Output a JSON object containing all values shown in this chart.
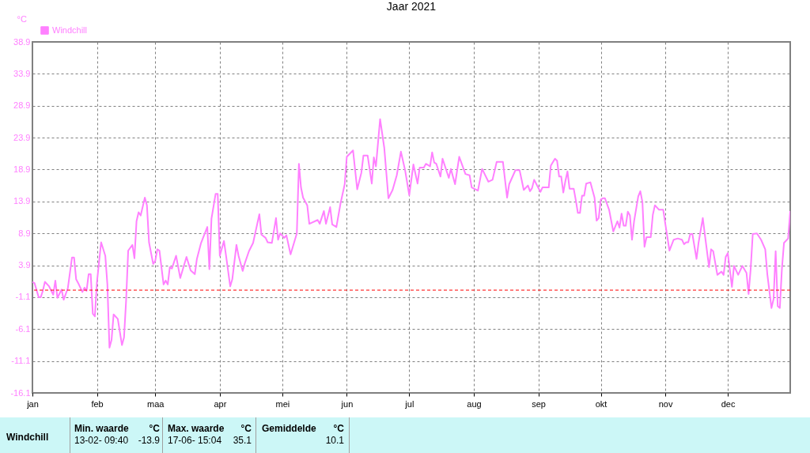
{
  "chart_data": {
    "type": "line",
    "title": "Jaar 2021",
    "ylabel": "°C",
    "x": [
      "--01-01",
      "--01-02",
      "--01-04",
      "--01-05",
      "--01-06",
      "--01-07",
      "--01-09",
      "--01-11",
      "--01-12",
      "--01-13",
      "--01-15",
      "--01-16",
      "--01-18",
      "--01-20",
      "--01-21",
      "--01-22",
      "--01-23",
      "--01-25",
      "--01-26",
      "--01-27",
      "--01-28",
      "--01-29",
      "--01-30",
      "--01-31",
      "--02-01",
      "--02-03",
      "--02-05",
      "--02-06",
      "--02-07",
      "--02-08",
      "--02-09",
      "--02-11",
      "--02-13",
      "--02-14",
      "--02-15",
      "--02-16",
      "--02-18",
      "--02-19",
      "--02-20",
      "--02-21",
      "--02-22",
      "--02-24",
      "--02-25",
      "--02-26",
      "--02-28",
      "--03-01",
      "--03-02",
      "--03-03",
      "--03-05",
      "--03-06",
      "--03-07",
      "--03-08",
      "--03-09",
      "--03-11",
      "--03-13",
      "--03-16",
      "--03-18",
      "--03-20",
      "--03-21",
      "--03-23",
      "--03-26",
      "--03-27",
      "--03-28",
      "--03-30",
      "--03-31",
      "--04-01",
      "--04-03",
      "--04-04",
      "--04-06",
      "--04-07",
      "--04-09",
      "--04-10",
      "--04-12",
      "--04-13",
      "--04-15",
      "--04-17",
      "--04-20",
      "--04-21",
      "--04-23",
      "--04-24",
      "--04-26",
      "--04-28",
      "--04-29",
      "--04-30",
      "--05-02",
      "--05-03",
      "--05-05",
      "--05-08",
      "--05-09",
      "--05-10",
      "--05-11",
      "--05-13",
      "--05-14",
      "--05-18",
      "--05-19",
      "--05-21",
      "--05-22",
      "--05-24",
      "--05-25",
      "--05-27",
      "--05-29",
      "--05-31",
      "--06-01",
      "--06-04",
      "--06-06",
      "--06-08",
      "--06-09",
      "--06-11",
      "--06-13",
      "--06-14",
      "--06-15",
      "--06-17",
      "--06-19",
      "--06-21",
      "--06-23",
      "--06-25",
      "--06-27",
      "--06-29",
      "--07-01",
      "--07-03",
      "--07-05",
      "--07-06",
      "--07-08",
      "--07-09",
      "--07-11",
      "--07-12",
      "--07-13",
      "--07-14",
      "--07-16",
      "--07-17",
      "--07-20",
      "--07-21",
      "--07-23",
      "--07-25",
      "--07-28",
      "--07-30",
      "--07-31",
      "--08-03",
      "--08-05",
      "--08-08",
      "--08-10",
      "--08-12",
      "--08-15",
      "--08-17",
      "--08-18",
      "--08-21",
      "--08-23",
      "--08-25",
      "--08-27",
      "--08-28",
      "--08-29",
      "--08-30",
      "--09-02",
      "--09-03",
      "--09-06",
      "--09-07",
      "--09-09",
      "--09-10",
      "--09-11",
      "--09-12",
      "--09-13",
      "--09-14",
      "--09-15",
      "--09-16",
      "--09-18",
      "--09-19",
      "--09-20",
      "--09-21",
      "--09-22",
      "--09-23",
      "--09-24",
      "--09-26",
      "--09-28",
      "--09-29",
      "--09-30",
      "--10-01",
      "--10-02",
      "--10-03",
      "--10-05",
      "--10-07",
      "--10-09",
      "--10-10",
      "--10-11",
      "--10-12",
      "--10-13",
      "--10-14",
      "--10-15",
      "--10-16",
      "--10-17",
      "--10-19",
      "--10-20",
      "--10-21",
      "--10-22",
      "--10-23",
      "--10-25",
      "--10-26",
      "--10-27",
      "--10-29",
      "--10-31",
      "--11-01",
      "--11-03",
      "--11-05",
      "--11-07",
      "--11-09",
      "--11-10",
      "--11-11",
      "--11-12",
      "--11-13",
      "--11-14",
      "--11-16",
      "--11-17",
      "--11-19",
      "--11-20",
      "--11-22",
      "--11-23",
      "--11-24",
      "--11-26",
      "--11-28",
      "--11-29",
      "--11-30",
      "--12-01",
      "--12-03",
      "--12-04",
      "--12-06",
      "--12-08",
      "--12-10",
      "--12-11",
      "--12-12",
      "--12-13",
      "--12-15",
      "--12-17",
      "--12-19",
      "--12-20",
      "--12-22",
      "--12-23",
      "--12-24",
      "--12-25",
      "--12-26",
      "--12-27",
      "--12-28",
      "--12-30",
      "--12-31"
    ],
    "series": [
      {
        "name": "Windchill",
        "color": "#ff80ff",
        "values": [
          1.3,
          1.1,
          -1.1,
          -1.1,
          -0.1,
          1.3,
          0.6,
          -0.7,
          1.5,
          -1.2,
          0.1,
          -1.5,
          0.3,
          5.1,
          5.1,
          1.7,
          1.1,
          -0.3,
          0.4,
          -0.1,
          2.5,
          2.5,
          -3.7,
          -4.1,
          1.3,
          7.5,
          5.4,
          0.9,
          -9.0,
          -7.8,
          -3.8,
          -4.5,
          -8.6,
          -7.4,
          -1.6,
          6.2,
          7.1,
          5.0,
          10.8,
          12.2,
          11.7,
          14.5,
          13.3,
          7.5,
          4.1,
          4.6,
          6.4,
          6.2,
          0.9,
          1.5,
          0.9,
          3.6,
          3.4,
          5.4,
          1.9,
          5.2,
          3.1,
          2.5,
          4.9,
          7.4,
          9.9,
          3.3,
          11.2,
          15.1,
          15.1,
          5.4,
          7.7,
          5.4,
          0.6,
          1.7,
          7.1,
          5.4,
          3.0,
          4.2,
          6.1,
          7.4,
          11.9,
          8.7,
          8.2,
          7.5,
          7.4,
          11.3,
          7.9,
          8.9,
          8.2,
          8.6,
          5.6,
          8.9,
          19.8,
          16.1,
          14.5,
          13.3,
          10.4,
          11.0,
          10.4,
          12.4,
          10.4,
          13.0,
          10.3,
          9.9,
          13.6,
          16.6,
          20.9,
          21.9,
          15.8,
          18.4,
          21.1,
          21.1,
          16.7,
          20.8,
          19.4,
          26.8,
          22.3,
          14.4,
          15.7,
          18.0,
          21.7,
          18.8,
          14.9,
          19.7,
          16.7,
          19.2,
          19.2,
          19.8,
          19.4,
          21.6,
          20.0,
          19.8,
          17.8,
          20.6,
          17.6,
          19.0,
          16.6,
          20.9,
          18.2,
          18.0,
          16.1,
          15.6,
          19.0,
          17.0,
          17.3,
          20.1,
          20.1,
          14.5,
          16.6,
          18.8,
          18.8,
          15.7,
          16.4,
          15.5,
          16.0,
          17.3,
          15.4,
          16.1,
          16.1,
          19.5,
          20.6,
          20.3,
          17.8,
          17.8,
          15.3,
          17.1,
          18.6,
          15.9,
          15.9,
          14.1,
          12.1,
          12.1,
          14.8,
          14.8,
          16.7,
          16.9,
          14.5,
          10.9,
          11.3,
          14.2,
          14.4,
          14.4,
          12.6,
          9.2,
          10.8,
          9.8,
          12.0,
          10.1,
          10.1,
          12.3,
          11.7,
          7.9,
          10.8,
          14.7,
          15.5,
          13.8,
          6.8,
          8.3,
          8.3,
          11.8,
          13.3,
          12.6,
          12.6,
          10.4,
          6.2,
          7.9,
          8.1,
          7.9,
          7.2,
          7.5,
          7.5,
          8.8,
          8.8,
          4.9,
          7.5,
          11.3,
          8.7,
          3.6,
          6.4,
          6.1,
          2.4,
          2.9,
          2.4,
          5.2,
          5.8,
          0.5,
          3.8,
          2.4,
          3.8,
          2.7,
          -0.6,
          3.3,
          8.8,
          8.9,
          7.9,
          6.4,
          2.5,
          -2.8,
          -1.4,
          6.1,
          -2.5,
          -2.8,
          3.3,
          7.4,
          8.1,
          12.4
        ]
      }
    ],
    "xlim": [
      "--01-01",
      "--12-31"
    ],
    "xticks": [
      {
        "value": "--01-01",
        "label": "jan"
      },
      {
        "value": "--02-01",
        "label": "feb"
      },
      {
        "value": "--03-01",
        "label": "maa"
      },
      {
        "value": "--04-01",
        "label": "apr"
      },
      {
        "value": "--05-01",
        "label": "mei"
      },
      {
        "value": "--06-01",
        "label": "jun"
      },
      {
        "value": "--07-01",
        "label": "jul"
      },
      {
        "value": "--08-01",
        "label": "aug"
      },
      {
        "value": "--09-01",
        "label": "sep"
      },
      {
        "value": "--10-01",
        "label": "okt"
      },
      {
        "value": "--11-01",
        "label": "nov"
      },
      {
        "value": "--12-01",
        "label": "dec"
      }
    ],
    "ylim": [
      -16.1,
      38.9
    ],
    "yticks": [
      -16.1,
      -11.1,
      -6.1,
      -1.1,
      3.9,
      8.9,
      13.9,
      18.9,
      23.9,
      28.9,
      33.9,
      38.9
    ],
    "grid": true,
    "legend": "top left",
    "line_style": "solid",
    "marker": "none",
    "ref_lines": [
      {
        "axis": "y",
        "value": 0,
        "color": "#ff0000",
        "line_style": "dashed"
      }
    ],
    "annotations": [
      "Windchill",
      "Min. waarde",
      "°C",
      "13-02- 09:40",
      "-13.9",
      "Max. waarde",
      "°C",
      "17-06- 15:04",
      "35.1",
      "Gemiddelde",
      "°C",
      "10.1"
    ]
  }
}
